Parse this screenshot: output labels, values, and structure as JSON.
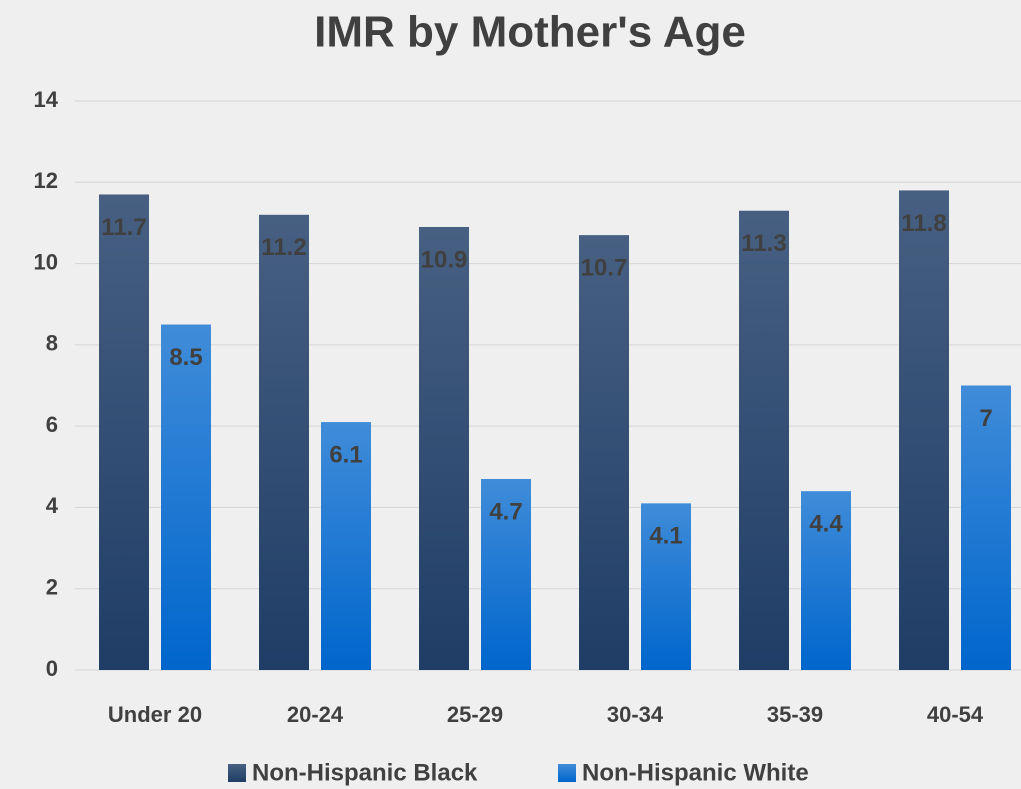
{
  "chart_data": {
    "type": "bar",
    "title": "IMR by Mother's Age",
    "categories": [
      "Under 20",
      "20-24",
      "25-29",
      "30-34",
      "35-39",
      "40-54"
    ],
    "series": [
      {
        "name": "Non-Hispanic Black",
        "color": "#1f3d66",
        "values": [
          11.7,
          11.2,
          10.9,
          10.7,
          11.3,
          11.8
        ]
      },
      {
        "name": "Non-Hispanic White",
        "color": "#0066cc",
        "values": [
          8.5,
          6.1,
          4.7,
          4.1,
          4.4,
          7
        ]
      }
    ],
    "ylim": [
      0,
      14
    ],
    "yticks": [
      0,
      2,
      4,
      6,
      8,
      10,
      12,
      14
    ],
    "grid": true,
    "legend": "bottom"
  }
}
